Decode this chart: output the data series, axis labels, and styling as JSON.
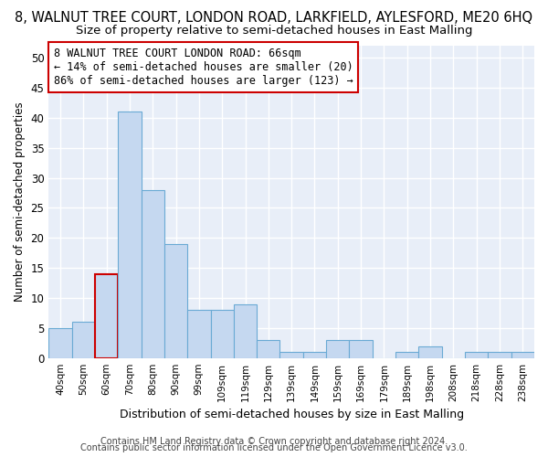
{
  "title": "8, WALNUT TREE COURT, LONDON ROAD, LARKFIELD, AYLESFORD, ME20 6HQ",
  "subtitle": "Size of property relative to semi-detached houses in East Malling",
  "xlabel": "Distribution of semi-detached houses by size in East Malling",
  "ylabel": "Number of semi-detached properties",
  "footer1": "Contains HM Land Registry data © Crown copyright and database right 2024.",
  "footer2": "Contains public sector information licensed under the Open Government Licence v3.0.",
  "categories": [
    "40sqm",
    "50sqm",
    "60sqm",
    "70sqm",
    "80sqm",
    "90sqm",
    "99sqm",
    "109sqm",
    "119sqm",
    "129sqm",
    "139sqm",
    "149sqm",
    "159sqm",
    "169sqm",
    "179sqm",
    "189sqm",
    "198sqm",
    "208sqm",
    "218sqm",
    "228sqm",
    "238sqm"
  ],
  "values": [
    5,
    6,
    14,
    41,
    28,
    19,
    8,
    8,
    9,
    3,
    1,
    1,
    3,
    3,
    0,
    1,
    2,
    0,
    1,
    1,
    1
  ],
  "bar_color": "#c5d8f0",
  "bar_edge_color": "#6aaad4",
  "highlight_bar_index": 2,
  "highlight_edge_color": "#cc0000",
  "ylim": [
    0,
    52
  ],
  "yticks": [
    0,
    5,
    10,
    15,
    20,
    25,
    30,
    35,
    40,
    45,
    50
  ],
  "annotation_text": "8 WALNUT TREE COURT LONDON ROAD: 66sqm\n← 14% of semi-detached houses are smaller (20)\n86% of semi-detached houses are larger (123) →",
  "bg_color": "#ffffff",
  "plot_bg_color": "#e8eef8",
  "grid_color": "#ffffff",
  "title_fontsize": 10.5,
  "subtitle_fontsize": 9.5,
  "annotation_fontsize": 8.5,
  "ylabel_fontsize": 8.5,
  "xlabel_fontsize": 9,
  "footer_fontsize": 7
}
